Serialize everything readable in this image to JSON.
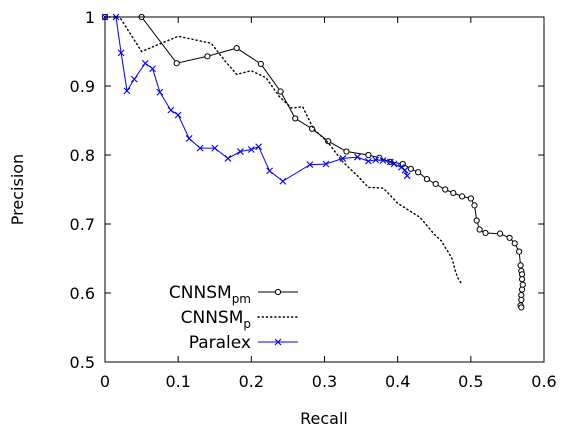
{
  "chart_data": {
    "type": "line",
    "xlabel": "Recall",
    "ylabel": "Precision",
    "xlim": [
      0,
      0.6
    ],
    "ylim": [
      0.5,
      1.0
    ],
    "xticks": [
      "0",
      "0.1",
      "0.2",
      "0.3",
      "0.4",
      "0.5",
      "0.6"
    ],
    "yticks": [
      "0.5",
      "0.6",
      "0.7",
      "0.8",
      "0.9",
      "1"
    ],
    "grid": false,
    "legend_position": "bottom-left",
    "series": [
      {
        "name": "CNNSM",
        "name_sub": "pm",
        "color": "#000000",
        "style": "solid",
        "marker": "circle",
        "points": [
          [
            0,
            1.0
          ],
          [
            0.05,
            1.0
          ],
          [
            0.098,
            0.933
          ],
          [
            0.14,
            0.943
          ],
          [
            0.18,
            0.955
          ],
          [
            0.213,
            0.932
          ],
          [
            0.24,
            0.892
          ],
          [
            0.26,
            0.853
          ],
          [
            0.283,
            0.838
          ],
          [
            0.305,
            0.82
          ],
          [
            0.33,
            0.805
          ],
          [
            0.36,
            0.8
          ],
          [
            0.375,
            0.796
          ],
          [
            0.39,
            0.79
          ],
          [
            0.407,
            0.787
          ],
          [
            0.418,
            0.78
          ],
          [
            0.428,
            0.775
          ],
          [
            0.44,
            0.765
          ],
          [
            0.452,
            0.758
          ],
          [
            0.465,
            0.75
          ],
          [
            0.476,
            0.745
          ],
          [
            0.488,
            0.74
          ],
          [
            0.5,
            0.737
          ],
          [
            0.505,
            0.727
          ],
          [
            0.508,
            0.705
          ],
          [
            0.512,
            0.692
          ],
          [
            0.52,
            0.687
          ],
          [
            0.54,
            0.686
          ],
          [
            0.553,
            0.68
          ],
          [
            0.56,
            0.672
          ],
          [
            0.566,
            0.66
          ],
          [
            0.568,
            0.64
          ],
          [
            0.569,
            0.632
          ],
          [
            0.57,
            0.627
          ],
          [
            0.57,
            0.62
          ],
          [
            0.571,
            0.612
          ],
          [
            0.57,
            0.605
          ],
          [
            0.569,
            0.597
          ],
          [
            0.569,
            0.59
          ],
          [
            0.568,
            0.582
          ],
          [
            0.569,
            0.579
          ]
        ]
      },
      {
        "name": "CNNSM",
        "name_sub": "p",
        "color": "#000000",
        "style": "dotted",
        "marker": "none",
        "points": [
          [
            0,
            1.0
          ],
          [
            0.02,
            1.0
          ],
          [
            0.05,
            0.95
          ],
          [
            0.1,
            0.972
          ],
          [
            0.145,
            0.962
          ],
          [
            0.165,
            0.935
          ],
          [
            0.18,
            0.917
          ],
          [
            0.2,
            0.922
          ],
          [
            0.22,
            0.912
          ],
          [
            0.238,
            0.885
          ],
          [
            0.255,
            0.868
          ],
          [
            0.27,
            0.87
          ],
          [
            0.285,
            0.838
          ],
          [
            0.305,
            0.818
          ],
          [
            0.325,
            0.79
          ],
          [
            0.345,
            0.77
          ],
          [
            0.36,
            0.753
          ],
          [
            0.38,
            0.752
          ],
          [
            0.385,
            0.747
          ],
          [
            0.4,
            0.73
          ],
          [
            0.415,
            0.72
          ],
          [
            0.43,
            0.71
          ],
          [
            0.44,
            0.698
          ],
          [
            0.45,
            0.685
          ],
          [
            0.46,
            0.675
          ],
          [
            0.465,
            0.666
          ],
          [
            0.47,
            0.658
          ],
          [
            0.475,
            0.648
          ],
          [
            0.478,
            0.635
          ],
          [
            0.482,
            0.622
          ],
          [
            0.487,
            0.614
          ]
        ]
      },
      {
        "name": "Paralex",
        "name_sub": "",
        "color": "#0000ff",
        "style": "solid",
        "marker": "x",
        "points": [
          [
            0,
            1.0
          ],
          [
            0.015,
            1.0
          ],
          [
            0.022,
            0.948
          ],
          [
            0.03,
            0.893
          ],
          [
            0.04,
            0.91
          ],
          [
            0.055,
            0.933
          ],
          [
            0.065,
            0.925
          ],
          [
            0.075,
            0.891
          ],
          [
            0.09,
            0.865
          ],
          [
            0.1,
            0.858
          ],
          [
            0.115,
            0.824
          ],
          [
            0.13,
            0.81
          ],
          [
            0.15,
            0.81
          ],
          [
            0.168,
            0.795
          ],
          [
            0.185,
            0.805
          ],
          [
            0.2,
            0.808
          ],
          [
            0.21,
            0.812
          ],
          [
            0.225,
            0.777
          ],
          [
            0.243,
            0.762
          ],
          [
            0.28,
            0.786
          ],
          [
            0.302,
            0.787
          ],
          [
            0.325,
            0.795
          ],
          [
            0.345,
            0.797
          ],
          [
            0.36,
            0.791
          ],
          [
            0.37,
            0.793
          ],
          [
            0.38,
            0.792
          ],
          [
            0.39,
            0.79
          ],
          [
            0.395,
            0.787
          ],
          [
            0.405,
            0.782
          ],
          [
            0.41,
            0.778
          ],
          [
            0.413,
            0.77
          ]
        ]
      }
    ]
  }
}
